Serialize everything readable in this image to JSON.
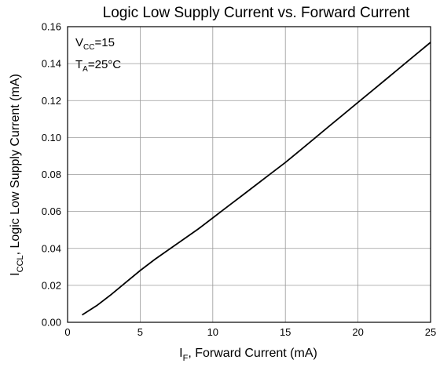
{
  "chart_data": {
    "type": "line",
    "title": "Logic Low Supply Current vs. Forward Current",
    "xlabel": {
      "main": "I",
      "sub": "F",
      "rest": ", Forward Current (mA)"
    },
    "ylabel": {
      "main": "I",
      "sub": "CCL",
      "rest": ", Logic Low Supply Current (mA)"
    },
    "xlim": [
      0,
      25
    ],
    "ylim": [
      0,
      0.16
    ],
    "x_ticks": [
      0,
      5,
      10,
      15,
      20,
      25
    ],
    "x_tick_labels": [
      "0",
      "5",
      "10",
      "15",
      "20",
      "25"
    ],
    "y_ticks": [
      0,
      0.02,
      0.04,
      0.06,
      0.08,
      0.1,
      0.12,
      0.14,
      0.16
    ],
    "y_tick_labels": [
      "0.00",
      "0.02",
      "0.04",
      "0.06",
      "0.08",
      "0.10",
      "0.12",
      "0.14",
      "0.16"
    ],
    "grid": true,
    "annotations": {
      "vcc": {
        "main": "V",
        "sub": "CC",
        "rest": "=15"
      },
      "ta": {
        "main": "T",
        "sub": "A",
        "rest": "=25°C"
      }
    },
    "series": [
      {
        "x": [
          1,
          2,
          3,
          4,
          5,
          6,
          7,
          8,
          9,
          10,
          11,
          12,
          13,
          14,
          15,
          16,
          17,
          18,
          19,
          20,
          21,
          22,
          23,
          24,
          25
        ],
        "y": [
          0.004,
          0.009,
          0.015,
          0.0215,
          0.028,
          0.034,
          0.0395,
          0.045,
          0.0505,
          0.0565,
          0.0625,
          0.0685,
          0.0745,
          0.0805,
          0.0865,
          0.093,
          0.0995,
          0.106,
          0.1125,
          0.119,
          0.1255,
          0.132,
          0.1385,
          0.145,
          0.1515
        ]
      }
    ]
  }
}
